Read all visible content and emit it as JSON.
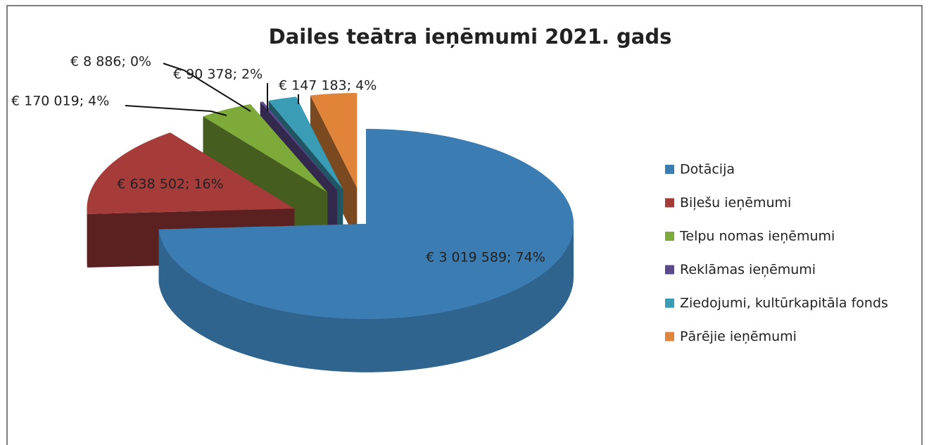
{
  "chart_data": {
    "type": "pie",
    "title": "Dailes teātra ieņēmumi 2021. gads",
    "categories": [
      "Dotācija",
      "Biļešu ieņēmumi",
      "Telpu nomas ieņēmumi",
      "Reklāmas ieņēmumi",
      "Ziedojumi, kultūrkapitāla fonds",
      "Pārējie ieņēmumi"
    ],
    "values": [
      3019589,
      638502,
      170019,
      8886,
      90378,
      147183
    ],
    "value_labels": [
      "€ 3 019 589; 74%",
      "€  638 502; 16%",
      "€ 170 019; 4%",
      "€ 8 886; 0%",
      "€ 90 378; 2%",
      "€ 147 183; 4%"
    ],
    "colors": [
      "#3b7db3",
      "#a63c3a",
      "#7eaa3a",
      "#5a4a8c",
      "#3a9db5",
      "#e0843a"
    ],
    "legend": "right"
  }
}
